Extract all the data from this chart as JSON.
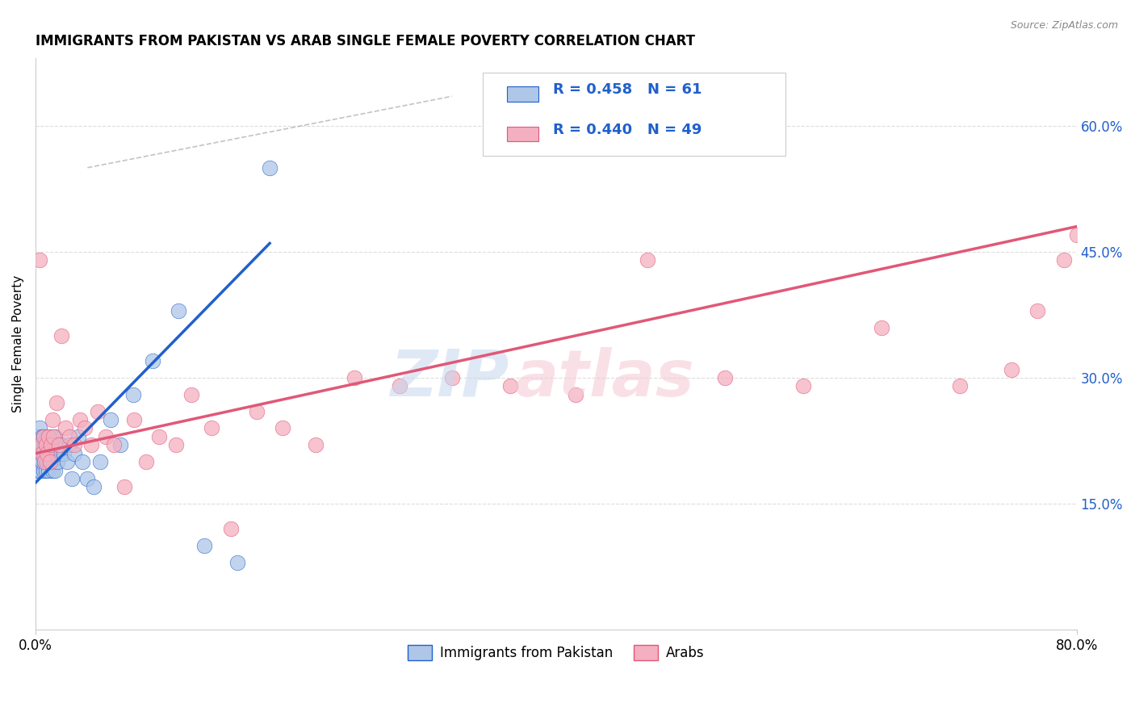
{
  "title": "IMMIGRANTS FROM PAKISTAN VS ARAB SINGLE FEMALE POVERTY CORRELATION CHART",
  "source": "Source: ZipAtlas.com",
  "ylabel": "Single Female Poverty",
  "right_yticks": [
    "15.0%",
    "30.0%",
    "45.0%",
    "60.0%"
  ],
  "right_ytick_vals": [
    0.15,
    0.3,
    0.45,
    0.6
  ],
  "legend_label1": "Immigrants from Pakistan",
  "legend_label2": "Arabs",
  "r1": 0.458,
  "n1": 61,
  "r2": 0.44,
  "n2": 49,
  "color1": "#aec6e8",
  "color2": "#f4afc0",
  "line_color1": "#2060cc",
  "line_color2": "#e05878",
  "xlim": [
    0.0,
    0.8
  ],
  "ylim": [
    0.0,
    0.68
  ],
  "pakistan_x": [
    0.001,
    0.001,
    0.002,
    0.002,
    0.003,
    0.003,
    0.003,
    0.004,
    0.004,
    0.005,
    0.005,
    0.005,
    0.006,
    0.006,
    0.006,
    0.007,
    0.007,
    0.007,
    0.008,
    0.008,
    0.008,
    0.009,
    0.009,
    0.009,
    0.01,
    0.01,
    0.01,
    0.011,
    0.011,
    0.012,
    0.012,
    0.012,
    0.013,
    0.013,
    0.014,
    0.014,
    0.015,
    0.015,
    0.016,
    0.017,
    0.018,
    0.019,
    0.02,
    0.022,
    0.024,
    0.026,
    0.028,
    0.03,
    0.033,
    0.036,
    0.04,
    0.045,
    0.05,
    0.058,
    0.065,
    0.075,
    0.09,
    0.11,
    0.13,
    0.155,
    0.18
  ],
  "pakistan_y": [
    0.22,
    0.2,
    0.23,
    0.19,
    0.22,
    0.2,
    0.24,
    0.21,
    0.19,
    0.23,
    0.2,
    0.22,
    0.21,
    0.19,
    0.23,
    0.2,
    0.22,
    0.21,
    0.2,
    0.22,
    0.19,
    0.21,
    0.23,
    0.2,
    0.22,
    0.21,
    0.19,
    0.2,
    0.22,
    0.21,
    0.2,
    0.23,
    0.19,
    0.22,
    0.21,
    0.2,
    0.23,
    0.19,
    0.21,
    0.2,
    0.22,
    0.21,
    0.22,
    0.21,
    0.2,
    0.22,
    0.18,
    0.21,
    0.23,
    0.2,
    0.18,
    0.17,
    0.2,
    0.25,
    0.22,
    0.28,
    0.32,
    0.38,
    0.1,
    0.08,
    0.55
  ],
  "arab_x": [
    0.003,
    0.004,
    0.005,
    0.006,
    0.007,
    0.008,
    0.009,
    0.01,
    0.011,
    0.012,
    0.013,
    0.014,
    0.016,
    0.018,
    0.02,
    0.023,
    0.026,
    0.03,
    0.034,
    0.038,
    0.043,
    0.048,
    0.054,
    0.06,
    0.068,
    0.076,
    0.085,
    0.095,
    0.108,
    0.12,
    0.135,
    0.15,
    0.17,
    0.19,
    0.215,
    0.245,
    0.28,
    0.32,
    0.365,
    0.415,
    0.47,
    0.53,
    0.59,
    0.65,
    0.71,
    0.75,
    0.77,
    0.79,
    0.8
  ],
  "arab_y": [
    0.44,
    0.22,
    0.21,
    0.23,
    0.2,
    0.22,
    0.21,
    0.23,
    0.2,
    0.22,
    0.25,
    0.23,
    0.27,
    0.22,
    0.35,
    0.24,
    0.23,
    0.22,
    0.25,
    0.24,
    0.22,
    0.26,
    0.23,
    0.22,
    0.17,
    0.25,
    0.2,
    0.23,
    0.22,
    0.28,
    0.24,
    0.12,
    0.26,
    0.24,
    0.22,
    0.3,
    0.29,
    0.3,
    0.29,
    0.28,
    0.44,
    0.3,
    0.29,
    0.36,
    0.29,
    0.31,
    0.38,
    0.44,
    0.47
  ],
  "pak_line_x": [
    0.0,
    0.18
  ],
  "pak_line_y": [
    0.175,
    0.46
  ],
  "arab_line_x": [
    0.0,
    0.8
  ],
  "arab_line_y": [
    0.21,
    0.48
  ],
  "ref_line_x": [
    0.04,
    0.32
  ],
  "ref_line_y": [
    0.55,
    0.635
  ]
}
